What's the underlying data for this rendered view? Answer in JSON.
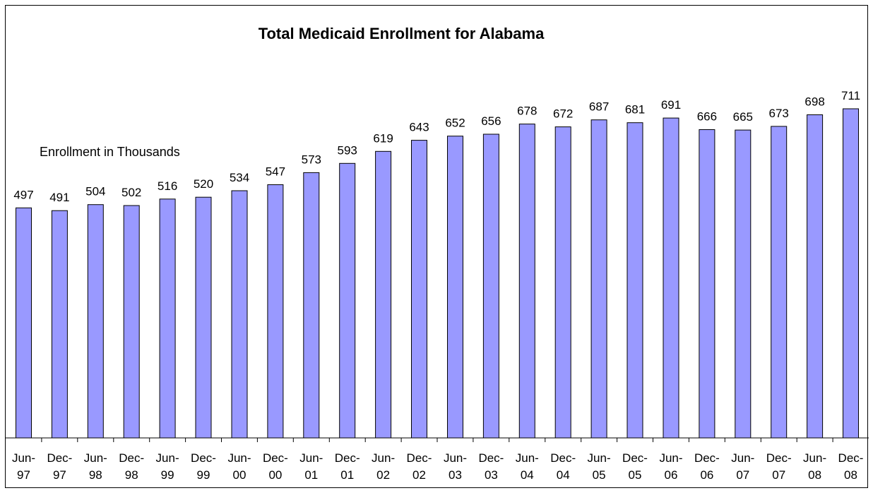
{
  "chart_data": {
    "type": "bar",
    "title": "Total Medicaid Enrollment for Alabama",
    "subtitle": "Enrollment in Thousands",
    "xlabel": "",
    "ylabel": "",
    "categories": [
      "Jun-97",
      "Dec-97",
      "Jun-98",
      "Dec-98",
      "Jun-99",
      "Dec-99",
      "Jun-00",
      "Dec-00",
      "Jun-01",
      "Dec-01",
      "Jun-02",
      "Dec-02",
      "Jun-03",
      "Dec-03",
      "Jun-04",
      "Dec-04",
      "Jun-05",
      "Dec-05",
      "Jun-06",
      "Dec-06",
      "Jun-07",
      "Dec-07",
      "Jun-08",
      "Dec-08"
    ],
    "values": [
      497,
      491,
      504,
      502,
      516,
      520,
      534,
      547,
      573,
      593,
      619,
      643,
      652,
      656,
      678,
      672,
      687,
      681,
      691,
      666,
      665,
      673,
      698,
      711
    ],
    "ylim": [
      0,
      711
    ],
    "grid": false,
    "legend": "none",
    "bar_color": "#9999ff",
    "bar_border": "#000000"
  }
}
